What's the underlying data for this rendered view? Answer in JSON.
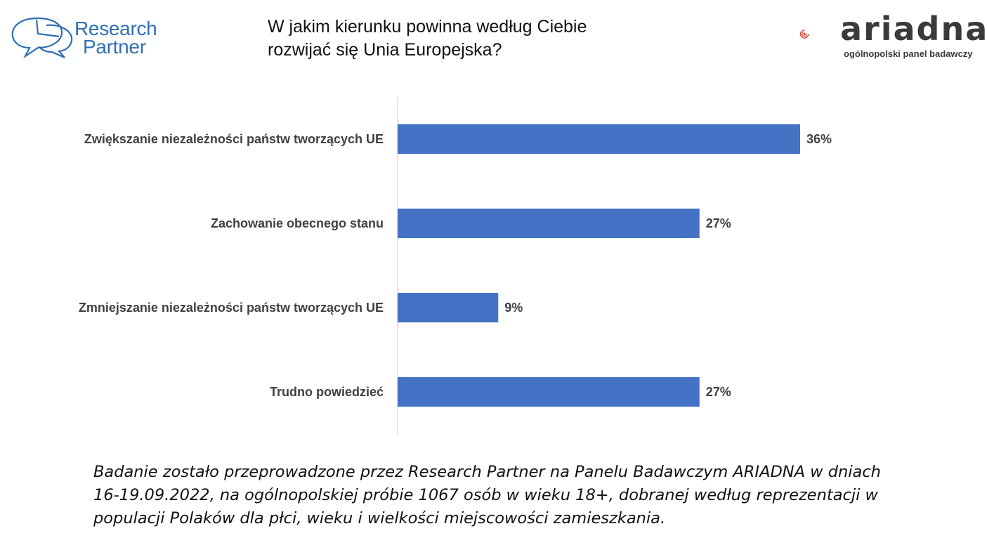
{
  "header": {
    "research_partner_logo": {
      "line1": "Research",
      "line2": "Partner",
      "color": "#2f6eb5"
    },
    "ariadna_logo": {
      "word": "ariadna",
      "tagline": "ogólnopolski panel badawczy",
      "accent": "#e03a2f"
    }
  },
  "title": {
    "line1": "W jakim kierunku powinna według Ciebie",
    "line2": "rozwijać się Unia Europejska?"
  },
  "chart_data": {
    "type": "bar",
    "orientation": "horizontal",
    "categories": [
      "Zwiększanie niezależności państw tworzących UE",
      "Zachowanie obecnego stanu",
      "Zmniejszanie niezależności państw tworzących UE",
      "Trudno powiedzieć"
    ],
    "values": [
      36,
      27,
      9,
      27
    ],
    "value_labels": [
      "36%",
      "27%",
      "9%",
      "27%"
    ],
    "xlim": [
      0,
      50
    ],
    "color": "#4472c4",
    "grid": false,
    "legend": "none"
  },
  "footnote": {
    "line1": "Badanie zostało przeprowadzone przez Research Partner na Panelu Badawczym ARIADNA w dniach",
    "line2": "16-19.09.2022, na ogólnopolskiej próbie 1067 osób w wieku 18+, dobranej według reprezentacji w",
    "line3": "populacji Polaków dla płci, wieku i wielkości miejscowości zamieszkania."
  }
}
